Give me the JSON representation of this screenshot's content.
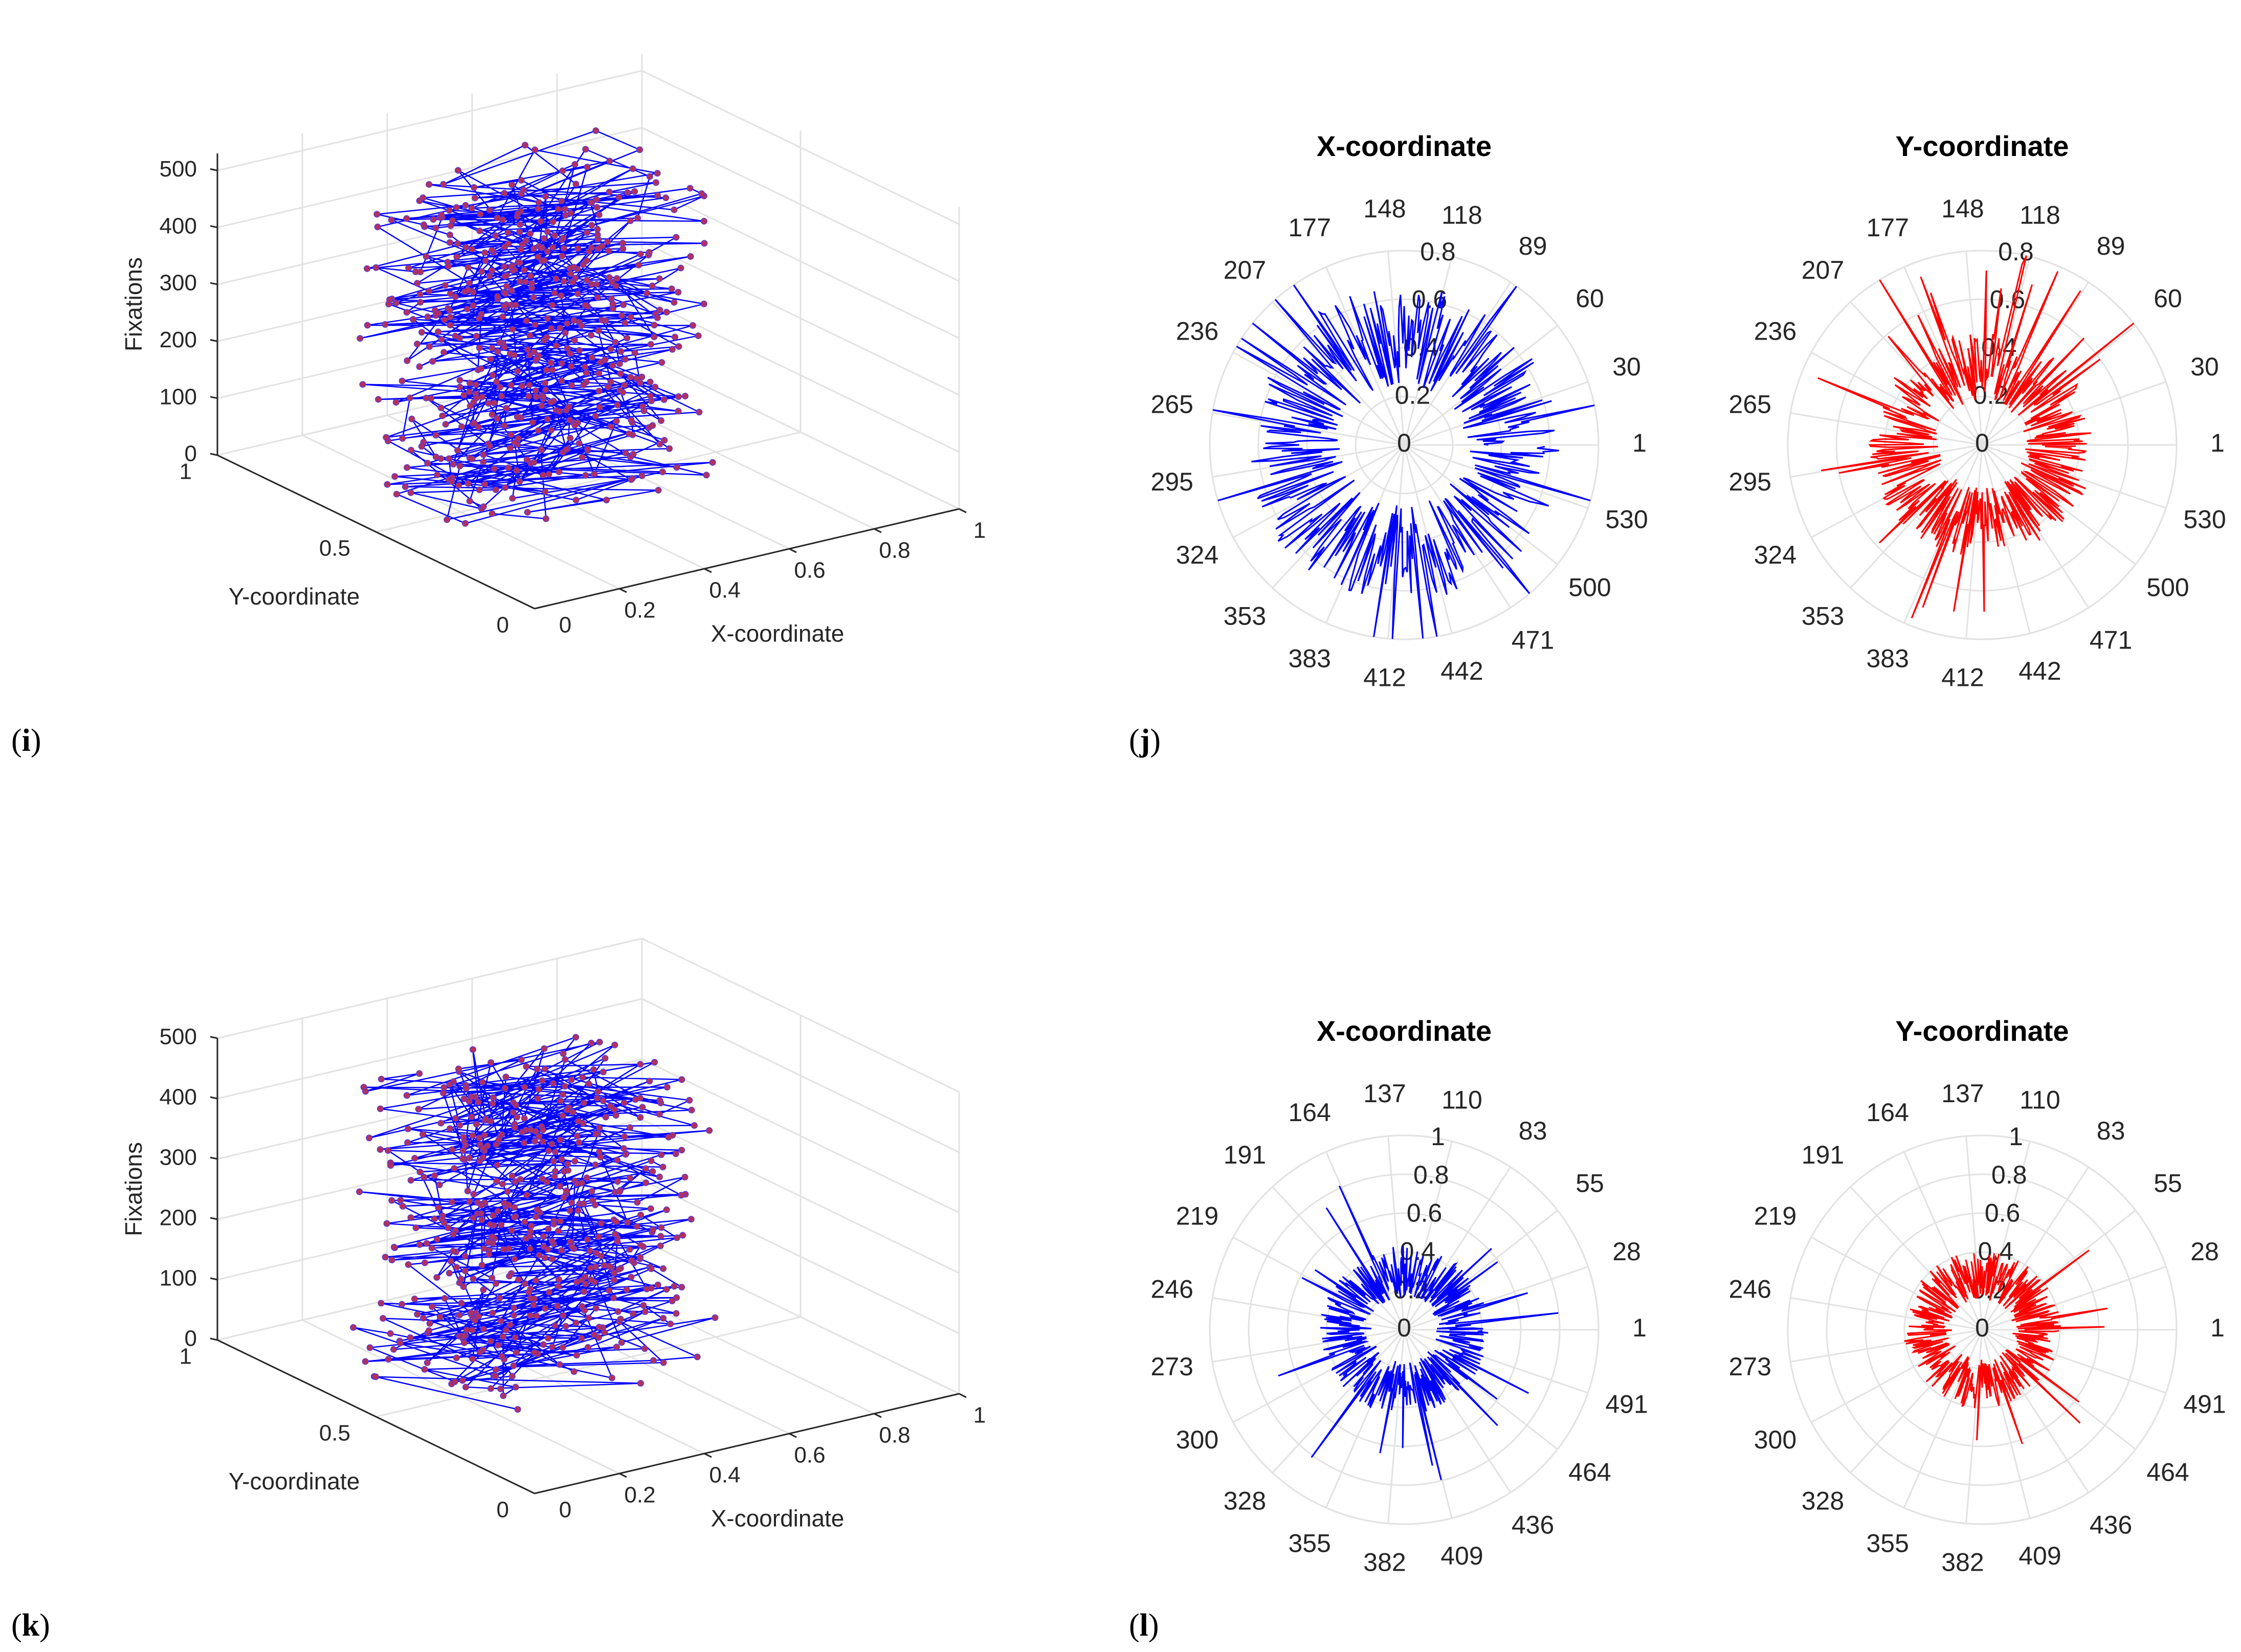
{
  "panel_labels": {
    "i": "i",
    "j": "j",
    "k": "k",
    "l": "l"
  },
  "colors": {
    "blue": "#0000ff",
    "red": "#ff0000",
    "marker": "#b03060",
    "grid": "#e2e2e2"
  },
  "chart_data": [
    {
      "id": "i",
      "type": "line3d",
      "xlabel": "X-coordinate",
      "ylabel": "Y-coordinate",
      "zlabel": "Fixations",
      "xticks": [
        "0.2",
        "0.4",
        "0.6",
        "0.8",
        "1"
      ],
      "yticks": [
        "0",
        "0.5",
        "1"
      ],
      "zticks": [
        "0",
        "100",
        "200",
        "300",
        "400",
        "500"
      ],
      "extra_ticks": [
        "0"
      ],
      "xlim": [
        0,
        1
      ],
      "ylim": [
        0,
        1
      ],
      "zlim": [
        0,
        530
      ],
      "n_points": 531,
      "x_range": [
        0.1,
        0.7
      ],
      "y_range": [
        0.35,
        0.75
      ],
      "color": "#0000ff"
    },
    {
      "id": "j",
      "type": "polar",
      "plots": [
        {
          "title": "X-coordinate",
          "color": "#0000ff",
          "angle_labels": [
            "1",
            "30",
            "60",
            "89",
            "118",
            "148",
            "177",
            "207",
            "236",
            "265",
            "295",
            "324",
            "353",
            "383",
            "412",
            "442",
            "471",
            "500",
            "530"
          ],
          "r_labels": [
            "0",
            "0.2",
            "0.4",
            "0.6",
            "0.8"
          ],
          "rlim": [
            0,
            0.8
          ],
          "mean_radius": 0.45
        },
        {
          "title": "Y-coordinate",
          "color": "#ff0000",
          "angle_labels": [
            "1",
            "30",
            "60",
            "89",
            "118",
            "148",
            "177",
            "207",
            "236",
            "265",
            "295",
            "324",
            "353",
            "383",
            "412",
            "442",
            "471",
            "500",
            "530"
          ],
          "r_labels": [
            "0",
            "0.2",
            "0.4",
            "0.6",
            "0.8"
          ],
          "rlim": [
            0,
            0.8
          ],
          "mean_radius": 0.32
        }
      ]
    },
    {
      "id": "k",
      "type": "line3d",
      "xlabel": "X-coordinate",
      "ylabel": "Y-coordinate",
      "zlabel": "Fixations",
      "xticks": [
        "0.2",
        "0.4",
        "0.6",
        "0.8",
        "1"
      ],
      "yticks": [
        "0",
        "0.5",
        "1"
      ],
      "zticks": [
        "0",
        "100",
        "200",
        "300",
        "400",
        "500"
      ],
      "extra_ticks": [
        "0"
      ],
      "xlim": [
        0,
        1
      ],
      "ylim": [
        0,
        1
      ],
      "zlim": [
        0,
        500
      ],
      "n_points": 518,
      "x_range": [
        0.1,
        0.7
      ],
      "y_range": [
        0.35,
        0.75
      ],
      "color": "#0000ff"
    },
    {
      "id": "l",
      "type": "polar",
      "plots": [
        {
          "title": "X-coordinate",
          "color": "#0000ff",
          "angle_labels": [
            "1",
            "28",
            "55",
            "83",
            "110",
            "137",
            "164",
            "191",
            "219",
            "246",
            "273",
            "300",
            "328",
            "355",
            "382",
            "409",
            "436",
            "464",
            "491"
          ],
          "r_labels": [
            "0",
            "0.2",
            "0.4",
            "0.6",
            "0.8",
            "1"
          ],
          "rlim": [
            0,
            1
          ],
          "mean_radius": 0.3
        },
        {
          "title": "Y-coordinate",
          "color": "#ff0000",
          "angle_labels": [
            "1",
            "28",
            "55",
            "83",
            "110",
            "137",
            "164",
            "191",
            "219",
            "246",
            "273",
            "300",
            "328",
            "355",
            "382",
            "409",
            "436",
            "464",
            "491"
          ],
          "r_labels": [
            "0",
            "0.2",
            "0.4",
            "0.6",
            "0.8",
            "1"
          ],
          "rlim": [
            0,
            1
          ],
          "mean_radius": 0.28
        }
      ]
    }
  ]
}
